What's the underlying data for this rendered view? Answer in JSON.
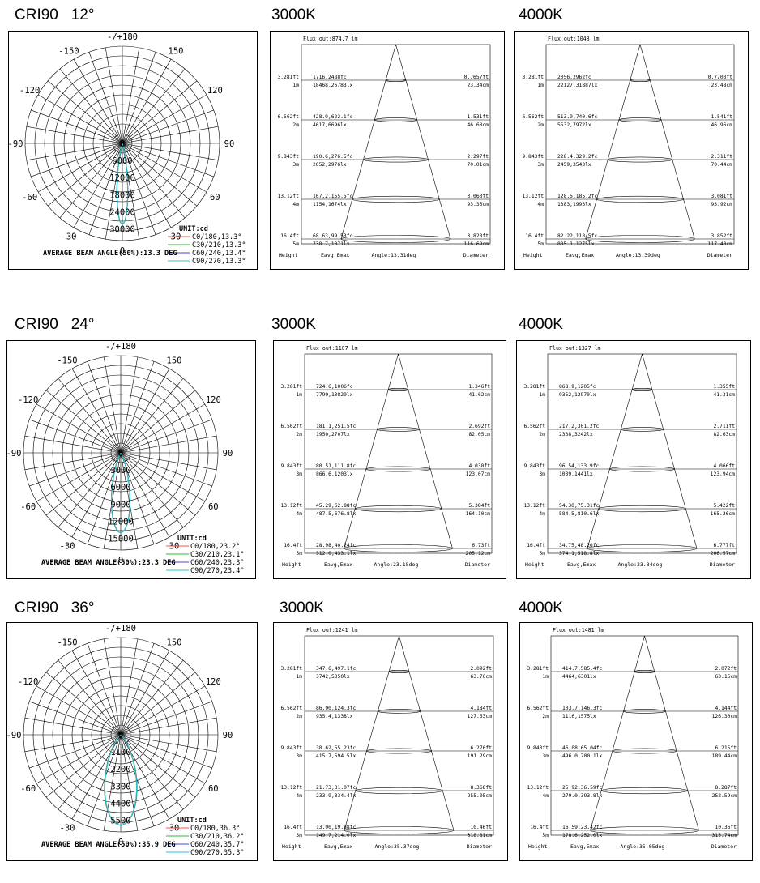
{
  "rows": [
    {
      "cri": "CRI90",
      "angle": "12°",
      "polar": {
        "top_label": "-/+180",
        "angle_labels": {
          "a0": "0",
          "a30": "30",
          "am30": "-30",
          "a60": "60",
          "am60": "-60",
          "a90": "90",
          "am90": "-90",
          "a120": "120",
          "am120": "-120",
          "a150": "150",
          "am150": "-150"
        },
        "radial_labels": [
          "0",
          "6000",
          "12000",
          "18000",
          "24000",
          "30000"
        ],
        "radial_max": 30000,
        "unit": "UNIT:cd",
        "legend": [
          "C0/180,13.3°",
          "C30/210,13.3°",
          "C60/240,13.4°",
          "C90/270,13.3°"
        ],
        "legend_colors": [
          "#ff4d4d",
          "#33b833",
          "#4a4ad9",
          "#2ec4c4"
        ],
        "beam": "AVERAGE BEAM ANGLE(50%):13.3 DEG",
        "curve_half_angles": [
          13.3,
          13.3,
          13.4,
          13.3
        ],
        "peak_fraction": 0.83
      },
      "cones": [
        {
          "temp": "3000K",
          "flux": "Flux out:874.7 lm",
          "angle_label": "Angle:13.31deg",
          "rows": [
            {
              "h_ft": "3.281ft",
              "h_m": "1m",
              "fc": "1716,2488fc",
              "lx": "18468,26783lx",
              "d_ft": "0.7657ft",
              "d_cm": "23.34cm"
            },
            {
              "h_ft": "6.562ft",
              "h_m": "2m",
              "fc": "428.9,622.1fc",
              "lx": "4617,6696lx",
              "d_ft": "1.531ft",
              "d_cm": "46.68cm"
            },
            {
              "h_ft": "9.843ft",
              "h_m": "3m",
              "fc": "190.6,276.5fc",
              "lx": "2052,2976lx",
              "d_ft": "2.297ft",
              "d_cm": "70.01cm"
            },
            {
              "h_ft": "13.12ft",
              "h_m": "4m",
              "fc": "107.2,155.5fc",
              "lx": "1154,1674lx",
              "d_ft": "3.063ft",
              "d_cm": "93.35cm"
            },
            {
              "h_ft": "16.4ft",
              "h_m": "5m",
              "fc": "68.63,99.53fc",
              "lx": "738.7,1071lx",
              "d_ft": "3.828ft",
              "d_cm": "116.69cm"
            }
          ],
          "footer": {
            "height": "Height",
            "eavg": "Eavg,Emax",
            "diameter": "Diameter"
          }
        },
        {
          "temp": "4000K",
          "flux": "Flux out:1048 lm",
          "angle_label": "Angle:13.39deg",
          "rows": [
            {
              "h_ft": "3.281ft",
              "h_m": "1m",
              "fc": "2056,2962fc",
              "lx": "22127,31887lx",
              "d_ft": "0.7703ft",
              "d_cm": "23.48cm"
            },
            {
              "h_ft": "6.562ft",
              "h_m": "2m",
              "fc": "513.9,740.6fc",
              "lx": "5532,7972lx",
              "d_ft": "1.541ft",
              "d_cm": "46.96cm"
            },
            {
              "h_ft": "9.843ft",
              "h_m": "3m",
              "fc": "228.4,329.2fc",
              "lx": "2459,3543lx",
              "d_ft": "2.311ft",
              "d_cm": "70.44cm"
            },
            {
              "h_ft": "13.12ft",
              "h_m": "4m",
              "fc": "128.5,185.2fc",
              "lx": "1383,1993lx",
              "d_ft": "3.081ft",
              "d_cm": "93.92cm"
            },
            {
              "h_ft": "16.4ft",
              "h_m": "5m",
              "fc": "82.22,118.5fc",
              "lx": "885.1,1275lx",
              "d_ft": "3.852ft",
              "d_cm": "117.40cm"
            }
          ],
          "footer": {
            "height": "Height",
            "eavg": "Eavg,Emax",
            "diameter": "Diameter"
          }
        }
      ]
    },
    {
      "cri": "CRI90",
      "angle": "24°",
      "polar": {
        "top_label": "-/+180",
        "angle_labels": {
          "a0": "0",
          "a30": "30",
          "am30": "-30",
          "a60": "60",
          "am60": "-60",
          "a90": "90",
          "am90": "-90",
          "a120": "120",
          "am120": "-120",
          "a150": "150",
          "am150": "-150"
        },
        "radial_labels": [
          "0",
          "3000",
          "6000",
          "9000",
          "12000",
          "15000"
        ],
        "radial_max": 15000,
        "unit": "UNIT:cd",
        "legend": [
          "C0/180,23.2°",
          "C30/210,23.1°",
          "C60/240,23.3°",
          "C90/270,23.4°"
        ],
        "legend_colors": [
          "#ff4d4d",
          "#33b833",
          "#4a4ad9",
          "#2ec4c4"
        ],
        "beam": "AVERAGE BEAM ANGLE(50%):23.3 DEG",
        "curve_half_angles": [
          23.2,
          23.1,
          23.3,
          23.4
        ],
        "peak_fraction": 0.82
      },
      "cones": [
        {
          "temp": "3000K",
          "flux": "Flux out:1107 lm",
          "angle_label": "Angle:23.18deg",
          "rows": [
            {
              "h_ft": "3.281ft",
              "h_m": "1m",
              "fc": "724.6,1006fc",
              "lx": "7799,10829lx",
              "d_ft": "1.346ft",
              "d_cm": "41.02cm"
            },
            {
              "h_ft": "6.562ft",
              "h_m": "2m",
              "fc": "181.1,251.5fc",
              "lx": "1950,2707lx",
              "d_ft": "2.692ft",
              "d_cm": "82.05cm"
            },
            {
              "h_ft": "9.843ft",
              "h_m": "3m",
              "fc": "80.51,111.8fc",
              "lx": "866.6,1203lx",
              "d_ft": "4.038ft",
              "d_cm": "123.07cm"
            },
            {
              "h_ft": "13.12ft",
              "h_m": "4m",
              "fc": "45.29,62.88fc",
              "lx": "487.5,676.8lx",
              "d_ft": "5.384ft",
              "d_cm": "164.10cm"
            },
            {
              "h_ft": "16.4ft",
              "h_m": "5m",
              "fc": "28.98,40.24fc",
              "lx": "312.0,433.1lx",
              "d_ft": "6.73ft",
              "d_cm": "205.12cm"
            }
          ],
          "footer": {
            "height": "Height",
            "eavg": "Eavg,Emax",
            "diameter": "Diameter"
          }
        },
        {
          "temp": "4000K",
          "flux": "Flux out:1327 lm",
          "angle_label": "Angle:23.34deg",
          "rows": [
            {
              "h_ft": "3.281ft",
              "h_m": "1m",
              "fc": "868.9,1205fc",
              "lx": "9352,12970lx",
              "d_ft": "1.355ft",
              "d_cm": "41.31cm"
            },
            {
              "h_ft": "6.562ft",
              "h_m": "2m",
              "fc": "217.2,301.2fc",
              "lx": "2338,3242lx",
              "d_ft": "2.711ft",
              "d_cm": "82.63cm"
            },
            {
              "h_ft": "9.843ft",
              "h_m": "3m",
              "fc": "96.54,133.9fc",
              "lx": "1039,1441lx",
              "d_ft": "4.066ft",
              "d_cm": "123.94cm"
            },
            {
              "h_ft": "13.12ft",
              "h_m": "4m",
              "fc": "54.30,75.31fc",
              "lx": "584.5,810.6lx",
              "d_ft": "5.422ft",
              "d_cm": "165.26cm"
            },
            {
              "h_ft": "16.4ft",
              "h_m": "5m",
              "fc": "34.75,48.20fc",
              "lx": "374.1,518.8lx",
              "d_ft": "6.777ft",
              "d_cm": "206.57cm"
            }
          ],
          "footer": {
            "height": "Height",
            "eavg": "Eavg,Emax",
            "diameter": "Diameter"
          }
        }
      ]
    },
    {
      "cri": "CRI90",
      "angle": "36°",
      "polar": {
        "top_label": "-/+180",
        "angle_labels": {
          "a0": "0",
          "a30": "30",
          "am30": "-30",
          "a60": "60",
          "am60": "-60",
          "a90": "90",
          "am90": "-90",
          "a120": "120",
          "am120": "-120",
          "a150": "150",
          "am150": "-150"
        },
        "radial_labels": [
          "0",
          "1100",
          "2200",
          "3300",
          "4400",
          "5500"
        ],
        "radial_max": 5500,
        "unit": "UNIT:cd",
        "legend": [
          "C0/180,36.3°",
          "C30/210,36.2°",
          "C60/240,35.7°",
          "C90/270,35.3°"
        ],
        "legend_colors": [
          "#ff4d4d",
          "#33b833",
          "#4a4ad9",
          "#2ec4c4"
        ],
        "beam": "AVERAGE BEAM ANGLE(50%):35.9 DEG",
        "curve_half_angles": [
          36.3,
          36.2,
          35.7,
          35.3
        ],
        "peak_fraction": 0.93
      },
      "cones": [
        {
          "temp": "3000K",
          "flux": "Flux out:1241 lm",
          "angle_label": "Angle:35.37deg",
          "rows": [
            {
              "h_ft": "3.281ft",
              "h_m": "1m",
              "fc": "347.6,497.1fc",
              "lx": "3742,5350lx",
              "d_ft": "2.092ft",
              "d_cm": "63.76cm"
            },
            {
              "h_ft": "6.562ft",
              "h_m": "2m",
              "fc": "86.90,124.3fc",
              "lx": "935.4,1338lx",
              "d_ft": "4.184ft",
              "d_cm": "127.53cm"
            },
            {
              "h_ft": "9.843ft",
              "h_m": "3m",
              "fc": "38.62,55.23fc",
              "lx": "415.7,594.5lx",
              "d_ft": "6.276ft",
              "d_cm": "191.29cm"
            },
            {
              "h_ft": "13.12ft",
              "h_m": "4m",
              "fc": "21.73,31.07fc",
              "lx": "233.9,334.4lx",
              "d_ft": "8.368ft",
              "d_cm": "255.05cm"
            },
            {
              "h_ft": "16.4ft",
              "h_m": "5m",
              "fc": "13.90,19.88fc",
              "lx": "149.7,214.0lx",
              "d_ft": "10.46ft",
              "d_cm": "318.81cm"
            }
          ],
          "footer": {
            "height": "Height",
            "eavg": "Eavg,Emax",
            "diameter": "Diameter"
          }
        },
        {
          "temp": "4000K",
          "flux": "Flux out:1481 lm",
          "angle_label": "Angle:35.05deg",
          "rows": [
            {
              "h_ft": "3.281ft",
              "h_m": "1m",
              "fc": "414.7,585.4fc",
              "lx": "4464,6301lx",
              "d_ft": "2.072ft",
              "d_cm": "63.15cm"
            },
            {
              "h_ft": "6.562ft",
              "h_m": "2m",
              "fc": "103.7,146.3fc",
              "lx": "1116,1575lx",
              "d_ft": "4.144ft",
              "d_cm": "126.30cm"
            },
            {
              "h_ft": "9.843ft",
              "h_m": "3m",
              "fc": "46.08,65.04fc",
              "lx": "496.0,700.1lx",
              "d_ft": "6.215ft",
              "d_cm": "189.44cm"
            },
            {
              "h_ft": "13.12ft",
              "h_m": "4m",
              "fc": "25.92,36.59fc",
              "lx": "279.0,393.8lx",
              "d_ft": "8.287ft",
              "d_cm": "252.59cm"
            },
            {
              "h_ft": "16.4ft",
              "h_m": "5m",
              "fc": "16.59,23.42fc",
              "lx": "178.6,252.0lx",
              "d_ft": "10.36ft",
              "d_cm": "315.74cm"
            }
          ],
          "footer": {
            "height": "Height",
            "eavg": "Eavg,Emax",
            "diameter": "Diameter"
          }
        }
      ]
    }
  ]
}
